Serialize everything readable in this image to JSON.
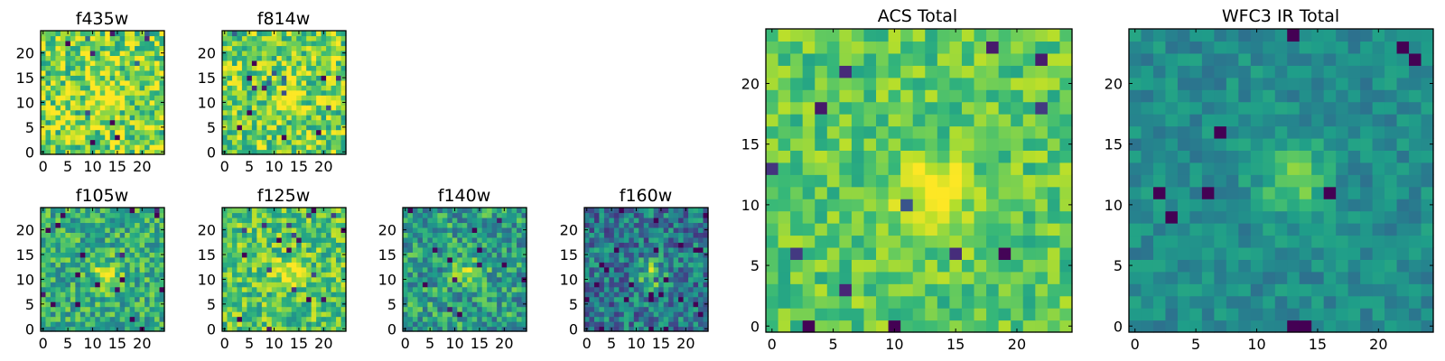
{
  "colormap": "viridis",
  "chart_data": [
    {
      "type": "heatmap",
      "title": "f435w",
      "grid": [
        25,
        25
      ],
      "peak": [
        13,
        11
      ],
      "xlim": [
        0,
        24
      ],
      "ylim": [
        0,
        24
      ],
      "xticks": [
        0,
        5,
        10,
        15,
        20
      ],
      "yticks": [
        0,
        5,
        10,
        15,
        20
      ],
      "xtick_labels": [
        "0",
        "5",
        "10",
        "15",
        "20"
      ],
      "ytick_labels": [
        "0",
        "5",
        "10",
        "15",
        "20"
      ],
      "xlabel": "",
      "ylabel": "",
      "grid_lines": false
    },
    {
      "type": "heatmap",
      "title": "f814w",
      "grid": [
        25,
        25
      ],
      "peak": [
        13,
        11
      ],
      "xlim": [
        0,
        24
      ],
      "ylim": [
        0,
        24
      ],
      "xticks": [
        0,
        5,
        10,
        15,
        20
      ],
      "yticks": [
        0,
        5,
        10,
        15,
        20
      ],
      "xtick_labels": [
        "0",
        "5",
        "10",
        "15",
        "20"
      ],
      "ytick_labels": [
        "0",
        "5",
        "10",
        "15",
        "20"
      ],
      "xlabel": "",
      "ylabel": "",
      "grid_lines": false
    },
    {
      "type": "heatmap",
      "title": "f105w",
      "grid": [
        25,
        25
      ],
      "peak": [
        13,
        11
      ],
      "xlim": [
        0,
        24
      ],
      "ylim": [
        0,
        24
      ],
      "xticks": [
        0,
        5,
        10,
        15,
        20
      ],
      "yticks": [
        0,
        5,
        10,
        15,
        20
      ],
      "xtick_labels": [
        "0",
        "5",
        "10",
        "15",
        "20"
      ],
      "ytick_labels": [
        "0",
        "5",
        "10",
        "15",
        "20"
      ],
      "xlabel": "",
      "ylabel": "",
      "grid_lines": false
    },
    {
      "type": "heatmap",
      "title": "f125w",
      "grid": [
        25,
        25
      ],
      "peak": [
        13,
        11
      ],
      "xlim": [
        0,
        24
      ],
      "ylim": [
        0,
        24
      ],
      "xticks": [
        0,
        5,
        10,
        15,
        20
      ],
      "yticks": [
        0,
        5,
        10,
        15,
        20
      ],
      "xtick_labels": [
        "0",
        "5",
        "10",
        "15",
        "20"
      ],
      "ytick_labels": [
        "0",
        "5",
        "10",
        "15",
        "20"
      ],
      "xlabel": "",
      "ylabel": "",
      "grid_lines": false
    },
    {
      "type": "heatmap",
      "title": "f140w",
      "grid": [
        25,
        25
      ],
      "peak": [
        13,
        11
      ],
      "xlim": [
        0,
        24
      ],
      "ylim": [
        0,
        24
      ],
      "xticks": [
        0,
        5,
        10,
        15,
        20
      ],
      "yticks": [
        0,
        5,
        10,
        15,
        20
      ],
      "xtick_labels": [
        "0",
        "5",
        "10",
        "15",
        "20"
      ],
      "ytick_labels": [
        "0",
        "5",
        "10",
        "15",
        "20"
      ],
      "xlabel": "",
      "ylabel": "",
      "grid_lines": false
    },
    {
      "type": "heatmap",
      "title": "f160w",
      "grid": [
        25,
        25
      ],
      "peak": [
        13,
        11
      ],
      "xlim": [
        0,
        24
      ],
      "ylim": [
        0,
        24
      ],
      "xticks": [
        0,
        5,
        10,
        15,
        20
      ],
      "yticks": [
        0,
        5,
        10,
        15,
        20
      ],
      "xtick_labels": [
        "0",
        "5",
        "10",
        "15",
        "20"
      ],
      "ytick_labels": [
        "0",
        "5",
        "10",
        "15",
        "20"
      ],
      "xlabel": "",
      "ylabel": "",
      "grid_lines": false
    },
    {
      "type": "heatmap",
      "title": "ACS Total",
      "grid": [
        25,
        25
      ],
      "peak": [
        13,
        11
      ],
      "xlim": [
        0,
        24
      ],
      "ylim": [
        0,
        24
      ],
      "xticks": [
        0,
        5,
        10,
        15,
        20
      ],
      "yticks": [
        0,
        5,
        10,
        15,
        20
      ],
      "xtick_labels": [
        "0",
        "5",
        "10",
        "15",
        "20"
      ],
      "ytick_labels": [
        "0",
        "5",
        "10",
        "15",
        "20"
      ],
      "xlabel": "",
      "ylabel": "",
      "grid_lines": false
    },
    {
      "type": "heatmap",
      "title": "WFC3 IR Total",
      "grid": [
        25,
        25
      ],
      "peak": [
        13,
        12
      ],
      "xlim": [
        0,
        24
      ],
      "ylim": [
        0,
        24
      ],
      "xticks": [
        0,
        5,
        10,
        15,
        20
      ],
      "yticks": [
        0,
        5,
        10,
        15,
        20
      ],
      "xtick_labels": [
        "0",
        "5",
        "10",
        "15",
        "20"
      ],
      "ytick_labels": [
        "0",
        "5",
        "10",
        "15",
        "20"
      ],
      "xlabel": "",
      "ylabel": "",
      "grid_lines": false
    }
  ]
}
